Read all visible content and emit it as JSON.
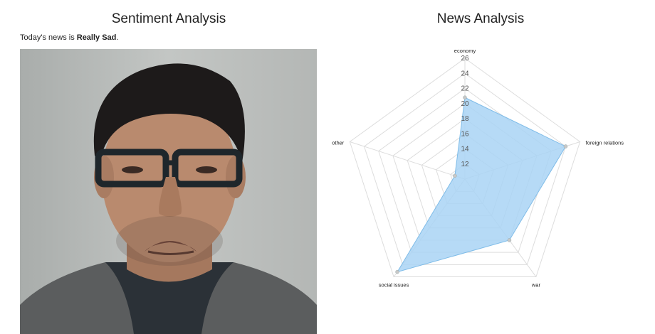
{
  "sentiment": {
    "title": "Sentiment Analysis",
    "prefix": "Today's news is ",
    "mood": "Really Sad",
    "suffix": "."
  },
  "news": {
    "title": "News Analysis"
  },
  "chart_data": {
    "type": "radar",
    "axes": [
      "economy",
      "foreign relations",
      "war",
      "social issues",
      "other"
    ],
    "r_ticks": [
      12,
      14,
      16,
      18,
      20,
      22,
      24,
      26
    ],
    "r_range": [
      10,
      26
    ],
    "series": [
      {
        "values": [
          20.8,
          24,
          20,
          25.2,
          11.4
        ],
        "fill": "#a9d4f5",
        "stroke": "#7fbce8"
      }
    ],
    "grid": true,
    "grid_color": "#dddddd"
  }
}
